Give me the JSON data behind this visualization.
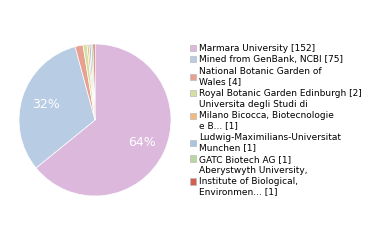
{
  "labels": [
    "Marmara University [152]",
    "Mined from GenBank, NCBI [75]",
    "National Botanic Garden of\nWales [4]",
    "Royal Botanic Garden Edinburgh [2]",
    "Universita degli Studi di\nMilano Bicocca, Biotecnologie\ne B... [1]",
    "Ludwig-Maximilians-Universitat\nMunchen [1]",
    "GATC Biotech AG [1]",
    "Aberystwyth University,\nInstitute of Biological,\nEnvironmen... [1]"
  ],
  "values": [
    152,
    75,
    4,
    2,
    1,
    1,
    1,
    1
  ],
  "colors": [
    "#ddb8dd",
    "#b8cce4",
    "#e8a090",
    "#d4e0a0",
    "#f4b97c",
    "#a8c4e0",
    "#b8d8a0",
    "#d06050"
  ],
  "background_color": "#ffffff",
  "label_fontsize": 6.5,
  "pct_fontsize": 9,
  "pct_threshold": 10
}
